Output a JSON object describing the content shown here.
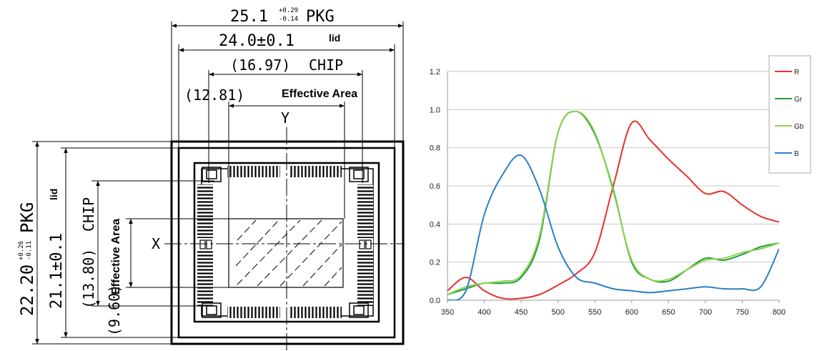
{
  "drawing": {
    "pkg_width_value": "25.1",
    "pkg_width_tol_plus": "+0.29",
    "pkg_width_tol_minus": "-0.14",
    "pkg_width_label": "PKG",
    "lid_width_value": "24.0±0.1",
    "lid_width_label": "lid",
    "chip_width_value": "(16.97)",
    "chip_width_label": "CHIP",
    "effective_width_value": "(12.81)",
    "effective_area_label": "Effective Area",
    "y_axis_label": "Y",
    "x_axis_label": "X",
    "pkg_height_value": "22.20",
    "pkg_height_tol_plus": "+0.26",
    "pkg_height_tol_minus": "-0.11",
    "pkg_height_label": "PKG",
    "lid_height_value": "21.1±0.1",
    "lid_height_label": "lid",
    "chip_height_value": "(13.80)",
    "chip_height_label": "CHIP",
    "effective_height_label": "Effective Area",
    "effective_height_value": "(9.60)"
  },
  "chart_data": {
    "type": "line",
    "title": "",
    "xlabel": "",
    "ylabel": "",
    "xlim": [
      350,
      800
    ],
    "ylim": [
      0,
      1.2
    ],
    "x_ticks": [
      "350",
      "400",
      "450",
      "500",
      "550",
      "600",
      "650",
      "700",
      "750",
      "800"
    ],
    "y_ticks": [
      "0.0",
      "0.2",
      "0.4",
      "0.6",
      "0.8",
      "1.0",
      "1.2"
    ],
    "grid": "horizontal",
    "legend_position": "top-right",
    "x": [
      350,
      375,
      400,
      425,
      450,
      475,
      500,
      525,
      550,
      575,
      600,
      625,
      650,
      675,
      700,
      725,
      750,
      775,
      800
    ],
    "series": [
      {
        "name": "R",
        "color": "#e8302a",
        "values": [
          0.05,
          0.12,
          0.05,
          0.01,
          0.01,
          0.03,
          0.08,
          0.14,
          0.25,
          0.6,
          0.93,
          0.84,
          0.74,
          0.65,
          0.56,
          0.57,
          0.5,
          0.44,
          0.41
        ]
      },
      {
        "name": "Gr",
        "color": "#1f9e3e",
        "values": [
          0.03,
          0.06,
          0.09,
          0.09,
          0.12,
          0.32,
          0.88,
          0.99,
          0.87,
          0.58,
          0.2,
          0.11,
          0.1,
          0.16,
          0.22,
          0.21,
          0.24,
          0.28,
          0.3
        ]
      },
      {
        "name": "Gb",
        "color": "#8fd14f",
        "values": [
          0.03,
          0.07,
          0.09,
          0.1,
          0.13,
          0.34,
          0.88,
          0.99,
          0.88,
          0.57,
          0.21,
          0.11,
          0.11,
          0.16,
          0.21,
          0.22,
          0.25,
          0.27,
          0.3
        ]
      },
      {
        "name": "B",
        "color": "#2a7fc8",
        "values": [
          0.0,
          0.05,
          0.45,
          0.66,
          0.76,
          0.58,
          0.28,
          0.12,
          0.09,
          0.06,
          0.05,
          0.04,
          0.05,
          0.06,
          0.07,
          0.06,
          0.06,
          0.07,
          0.27
        ]
      }
    ]
  }
}
